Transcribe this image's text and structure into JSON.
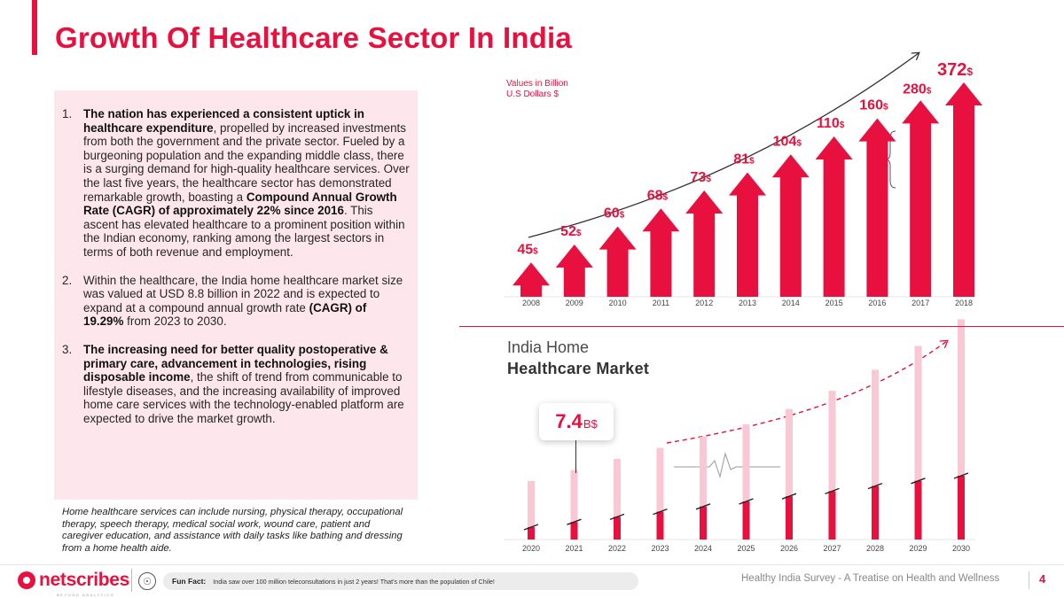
{
  "page": {
    "title": "Growth Of Healthcare Sector In India",
    "page_number": "4"
  },
  "left_panel": {
    "points": [
      {
        "number": "1.",
        "segments": [
          {
            "text": "The nation has experienced a consistent uptick in healthcare expenditure",
            "bold": true
          },
          {
            "text": ", propelled by increased investments from both the government and the private sector. Fueled by a burgeoning population and the expanding middle class, there is a surging demand for high-quality healthcare services. Over the last five years, the healthcare sector has demonstrated remarkable growth, boasting a ",
            "bold": false
          },
          {
            "text": "Compound Annual Growth Rate (CAGR) of approximately 22% since 2016",
            "bold": true
          },
          {
            "text": ". This ascent has elevated healthcare to a prominent position within the Indian economy, ranking among the largest sectors in terms of both revenue and employment.",
            "bold": false
          }
        ]
      },
      {
        "number": "2.",
        "segments": [
          {
            "text": "Within the healthcare, the India home healthcare market size was valued at USD 8.8 billion in 2022 and is expected to expand at a compound annual growth rate ",
            "bold": false
          },
          {
            "text": "(CAGR) of 19.29%",
            "bold": true
          },
          {
            "text": " from 2023 to 2030.",
            "bold": false
          }
        ]
      },
      {
        "number": "3.",
        "segments": [
          {
            "text": "The increasing need for better quality postoperative & primary care, advancement in technologies, rising disposable income",
            "bold": true
          },
          {
            "text": ", the shift of trend from communicable to lifestyle diseases, and the increasing availability of improved home care services with the technology-enabled platform are expected to drive the market growth.",
            "bold": false
          }
        ]
      }
    ],
    "footnote": "Home healthcare services can include nursing, physical therapy, occupational therapy, speech therapy, medical social work, wound care, patient and caregiver education, and assistance with daily tasks like bathing and dressing from a home health aide."
  },
  "chart_data": [
    {
      "type": "bar",
      "name": "healthcare-sector-growth",
      "unit_note_lines": [
        "Values in Billion",
        "U.S Dollars $"
      ],
      "value_unit": "$",
      "categories": [
        "2008",
        "2009",
        "2010",
        "2011",
        "2012",
        "2013",
        "2014",
        "2015",
        "2016",
        "2017",
        "2018"
      ],
      "values": [
        45,
        52,
        60,
        68,
        73,
        81,
        104,
        110,
        160,
        280,
        372
      ],
      "ylim": [
        0,
        372
      ]
    },
    {
      "type": "bar",
      "name": "india-home-healthcare-market",
      "title_line1": "India Home",
      "title_line2": "Healthcare Market",
      "categories": [
        "2020",
        "2021",
        "2022",
        "2023",
        "2024",
        "2025",
        "2026",
        "2027",
        "2028",
        "2029",
        "2030"
      ],
      "callout_value": "7.4",
      "callout_unit": "B$",
      "callout_year": "2021"
    }
  ],
  "colors": {
    "accent": "#e8103e",
    "panel": "#fde7ec",
    "light_bar": "#fac8d4"
  },
  "footer": {
    "brand": "netscribes",
    "brand_tagline": "BEYOND ANALYTICS",
    "fun_fact_label": "Fun Fact:",
    "fun_fact_text": "India saw over 100 million teleconsultations in just 2 years! That's more than the population of Chile!",
    "report_title": "Healthy India Survey - A Treatise on Health and Wellness"
  }
}
